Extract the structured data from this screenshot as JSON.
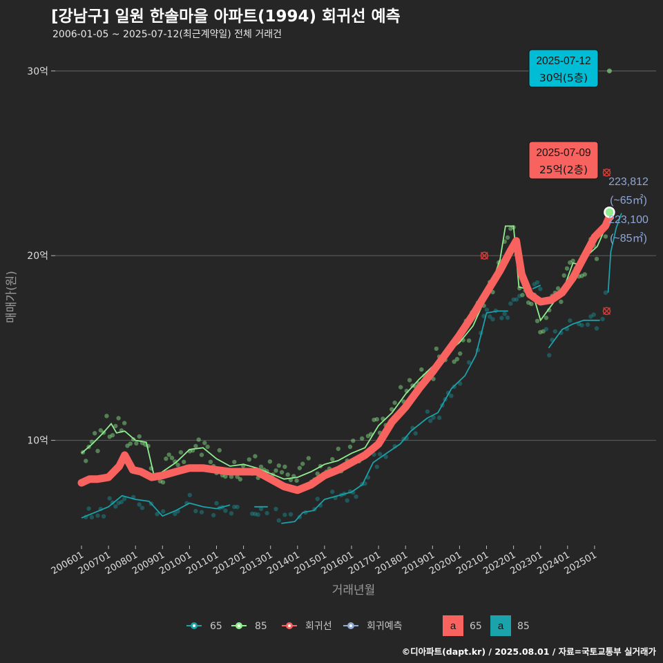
{
  "header": {
    "title": "[강남구] 일원 한솔마을 아파트(1994) 회귀선 예측",
    "subtitle": "2006-01-05 ~ 2025-07-12(최근계약일) 전체 거래건"
  },
  "footer": "©디아파트(dapt.kr) / 2025.08.01 / 자료=국토교통부 실거래가",
  "colors": {
    "bg": "#262626",
    "s65": "#1aa3aa",
    "s85": "#90ee90",
    "regression": "#f8635f",
    "forecast": "#8fa6d6",
    "grid": "#5a5a5a"
  },
  "chart_data": {
    "type": "line",
    "xlabel": "거래년월",
    "ylabel": "매매가(원)",
    "x_range": [
      2006.0,
      2025.67
    ],
    "ylim": [
      4.3,
      31.3
    ],
    "y_ticks": [
      {
        "v": 10,
        "label": "10억"
      },
      {
        "v": 20,
        "label": "20억"
      },
      {
        "v": 30,
        "label": "30억"
      }
    ],
    "x_ticks": [
      "200601",
      "200701",
      "200801",
      "200901",
      "201001",
      "201101",
      "201201",
      "201301",
      "201401",
      "201501",
      "201601",
      "201701",
      "201801",
      "201901",
      "202001",
      "202101",
      "202201",
      "202301",
      "202401",
      "202501"
    ],
    "series": [
      {
        "name": "65",
        "points": [
          [
            2006.0,
            5.8
          ],
          [
            2006.5,
            6.1
          ],
          [
            2007.0,
            6.4
          ],
          [
            2007.5,
            7.0
          ],
          [
            2008.0,
            6.8
          ],
          [
            2008.5,
            6.7
          ],
          [
            2009.0,
            5.9
          ],
          [
            2009.5,
            6.2
          ],
          [
            2010.0,
            6.6
          ],
          [
            2010.5,
            6.4
          ],
          [
            2011.0,
            6.3
          ],
          [
            2011.5,
            6.5
          ],
          [
            null,
            null
          ],
          [
            2012.4,
            6.4
          ],
          [
            2012.9,
            6.4
          ],
          [
            null,
            null
          ],
          [
            2013.4,
            5.5
          ],
          [
            2013.9,
            5.6
          ],
          [
            2014.2,
            6.1
          ],
          [
            2014.6,
            6.2
          ],
          [
            2015.0,
            6.8
          ],
          [
            2015.5,
            7.0
          ],
          [
            2016.0,
            7.2
          ],
          [
            2016.4,
            7.6
          ],
          [
            2016.8,
            8.8
          ],
          [
            2017.3,
            9.3
          ],
          [
            2017.8,
            9.8
          ],
          [
            2018.2,
            10.5
          ],
          [
            2018.8,
            11.2
          ],
          [
            2019.2,
            11.5
          ],
          [
            2019.7,
            12.8
          ],
          [
            2020.2,
            13.5
          ],
          [
            2020.6,
            14.6
          ],
          [
            2021.0,
            16.9
          ],
          [
            2021.4,
            17.0
          ],
          [
            2021.8,
            17.0
          ],
          [
            null,
            null
          ],
          [
            2022.7,
            18.2
          ],
          [
            2023.0,
            18.4
          ],
          [
            null,
            null
          ],
          [
            2023.3,
            15.0
          ],
          [
            2023.8,
            16.0
          ],
          [
            2024.2,
            16.3
          ],
          [
            2024.6,
            16.5
          ],
          [
            2025.2,
            16.5
          ],
          [
            null,
            null
          ],
          [
            2025.5,
            18.0
          ],
          [
            2025.6,
            20.2
          ],
          [
            2025.8,
            21.5
          ],
          [
            2026.0,
            22.3
          ]
        ]
      },
      {
        "name": "85",
        "points": [
          [
            2006.0,
            9.3
          ],
          [
            2006.4,
            9.8
          ],
          [
            2006.8,
            10.4
          ],
          [
            2007.1,
            10.9
          ],
          [
            2007.3,
            10.4
          ],
          [
            2007.6,
            10.5
          ],
          [
            2008.0,
            10.0
          ],
          [
            2008.4,
            9.9
          ],
          [
            2008.7,
            8.0
          ],
          [
            2009.0,
            8.3
          ],
          [
            2009.5,
            8.8
          ],
          [
            2010.0,
            9.5
          ],
          [
            2010.5,
            9.6
          ],
          [
            2011.0,
            9.0
          ],
          [
            2011.5,
            8.6
          ],
          [
            2012.0,
            8.7
          ],
          [
            2012.5,
            8.5
          ],
          [
            2013.0,
            8.2
          ],
          [
            2013.5,
            7.9
          ],
          [
            2014.0,
            8.0
          ],
          [
            2014.5,
            8.3
          ],
          [
            2015.0,
            8.7
          ],
          [
            2015.5,
            8.9
          ],
          [
            2016.0,
            9.3
          ],
          [
            2016.5,
            9.6
          ],
          [
            2017.0,
            10.8
          ],
          [
            2017.5,
            11.5
          ],
          [
            2018.0,
            12.5
          ],
          [
            2018.5,
            13.3
          ],
          [
            2019.0,
            14.0
          ],
          [
            2019.5,
            14.7
          ],
          [
            2020.0,
            15.3
          ],
          [
            2020.5,
            16.2
          ],
          [
            2020.9,
            17.5
          ],
          [
            2021.2,
            18.5
          ],
          [
            2021.5,
            19.8
          ],
          [
            2021.7,
            21.6
          ],
          [
            2022.0,
            21.6
          ],
          [
            2022.2,
            18.3
          ],
          [
            2022.5,
            18.2
          ],
          [
            2022.8,
            17.5
          ],
          [
            2023.0,
            16.5
          ],
          [
            2023.5,
            17.5
          ],
          [
            2023.8,
            18.0
          ],
          [
            2024.2,
            19.6
          ],
          [
            2024.5,
            19.5
          ],
          [
            2024.8,
            20.1
          ],
          [
            2025.1,
            20.5
          ],
          [
            2025.4,
            21.5
          ],
          [
            2025.6,
            22.4
          ]
        ]
      },
      {
        "name": "회귀선",
        "points": [
          [
            2006.0,
            7.7
          ],
          [
            2006.3,
            7.9
          ],
          [
            2006.6,
            7.9
          ],
          [
            2007.0,
            8.0
          ],
          [
            2007.4,
            8.6
          ],
          [
            2007.6,
            9.2
          ],
          [
            2007.9,
            8.4
          ],
          [
            2008.2,
            8.3
          ],
          [
            2008.6,
            8.0
          ],
          [
            2009.0,
            8.1
          ],
          [
            2009.5,
            8.3
          ],
          [
            2010.0,
            8.5
          ],
          [
            2010.5,
            8.5
          ],
          [
            2011.0,
            8.4
          ],
          [
            2011.5,
            8.3
          ],
          [
            2012.0,
            8.3
          ],
          [
            2012.5,
            8.3
          ],
          [
            2013.0,
            7.9
          ],
          [
            2013.5,
            7.5
          ],
          [
            2014.0,
            7.3
          ],
          [
            2014.5,
            7.6
          ],
          [
            2015.0,
            8.1
          ],
          [
            2015.5,
            8.4
          ],
          [
            2016.0,
            8.8
          ],
          [
            2016.5,
            9.2
          ],
          [
            2017.0,
            9.8
          ],
          [
            2017.5,
            11.0
          ],
          [
            2018.0,
            11.8
          ],
          [
            2018.5,
            12.8
          ],
          [
            2019.0,
            13.7
          ],
          [
            2019.5,
            14.7
          ],
          [
            2020.0,
            15.7
          ],
          [
            2020.5,
            16.8
          ],
          [
            2021.0,
            18.0
          ],
          [
            2021.5,
            19.2
          ],
          [
            2021.9,
            20.3
          ],
          [
            2022.1,
            20.8
          ],
          [
            2022.3,
            19.0
          ],
          [
            2022.6,
            17.9
          ],
          [
            2023.0,
            17.5
          ],
          [
            2023.4,
            17.6
          ],
          [
            2023.8,
            18.0
          ],
          [
            2024.2,
            18.8
          ],
          [
            2024.6,
            19.9
          ],
          [
            2025.0,
            21.0
          ],
          [
            2025.4,
            21.6
          ],
          [
            2025.55,
            22.1
          ]
        ]
      }
    ],
    "last_point": {
      "x": 2025.55,
      "y": 22.35
    },
    "forecast_labels": [
      {
        "value": "223,812",
        "size": "(~65㎡)"
      },
      {
        "value": "223,100",
        "size": "(~85㎡)"
      }
    ],
    "annotations": [
      {
        "date": "2025-07-12",
        "price": "30억(5층)",
        "y": 30.0,
        "color": "#00bcd4"
      },
      {
        "date": "2025-07-09",
        "price": "25억(2층)",
        "y": 24.5,
        "color": "#f8635f"
      }
    ],
    "outliers_x": [
      [
        2020.92,
        20.0
      ],
      [
        2025.45,
        24.5
      ],
      [
        2025.45,
        17.0
      ]
    ],
    "legend": {
      "items": [
        "65",
        "85",
        "회귀선",
        "회귀예측"
      ],
      "boxes": [
        {
          "glyph": "a",
          "label": "65"
        },
        {
          "glyph": "a",
          "label": "85"
        }
      ]
    }
  }
}
